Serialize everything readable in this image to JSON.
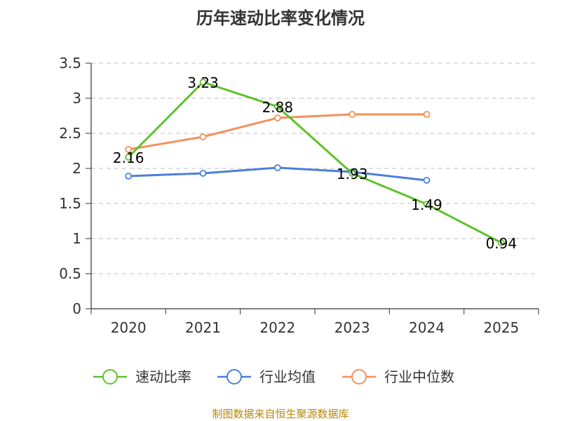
{
  "chart_data": {
    "type": "line",
    "title": "历年速动比率变化情况",
    "categories": [
      "2020",
      "2021",
      "2022",
      "2023",
      "2024",
      "2025"
    ],
    "ylim": [
      0,
      3.5
    ],
    "yticks": [
      "0",
      "0.5",
      "1",
      "1.5",
      "2",
      "2.5",
      "3",
      "3.5"
    ],
    "grid": true,
    "legend_position": "bottom",
    "series": [
      {
        "name": "速动比率",
        "color": "#5ec229",
        "values": [
          2.16,
          3.23,
          2.88,
          1.93,
          1.49,
          0.94
        ],
        "labels": [
          "2.16",
          "3.23",
          "2.88",
          "1.93",
          "1.49",
          "0.94"
        ],
        "show_labels": true
      },
      {
        "name": "行业均值",
        "color": "#4a7fdc",
        "values": [
          1.89,
          1.93,
          2.01,
          1.95,
          1.83,
          null
        ],
        "show_labels": false
      },
      {
        "name": "行业中位数",
        "color": "#f5905a",
        "values": [
          2.27,
          2.45,
          2.72,
          2.77,
          2.77,
          null
        ],
        "show_labels": false
      }
    ]
  },
  "source_note": "制图数据来自恒生聚源数据库"
}
